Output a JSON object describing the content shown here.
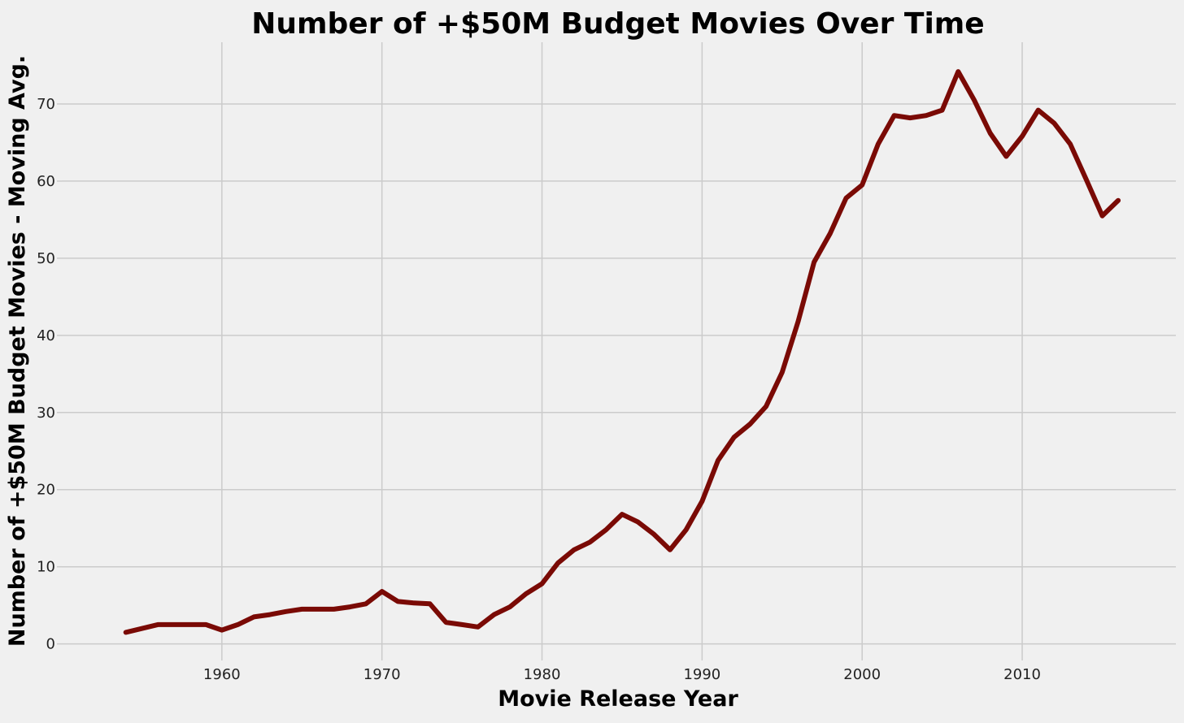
{
  "colors": {
    "background": "#f0f0f0",
    "grid": "#cbcbcb",
    "line": "#7a0a05"
  },
  "chart_data": {
    "type": "line",
    "title": "Number of +$50M Budget Movies Over Time",
    "xlabel": "Movie Release Year",
    "ylabel": "Number of +$50M Budget Movies - Moving Avg.",
    "xlim": [
      1950,
      2019.6
    ],
    "ylim": [
      -1.3,
      78
    ],
    "xticks": [
      1960,
      1970,
      1980,
      1990,
      2000,
      2010
    ],
    "yticks": [
      0,
      10,
      20,
      30,
      40,
      50,
      60,
      70
    ],
    "grid": true,
    "legend": "none",
    "series": [
      {
        "x": [
          1954,
          1955,
          1956,
          1957,
          1958,
          1959,
          1960,
          1961,
          1962,
          1963,
          1964,
          1965,
          1966,
          1967,
          1968,
          1969,
          1970,
          1971,
          1972,
          1973,
          1974,
          1975,
          1976,
          1977,
          1978,
          1979,
          1980,
          1981,
          1982,
          1983,
          1984,
          1985,
          1986,
          1987,
          1988,
          1989,
          1990,
          1991,
          1992,
          1993,
          1994,
          1995,
          1996,
          1997,
          1998,
          1999,
          2000,
          2001,
          2002,
          2003,
          2004,
          2005,
          2006,
          2007,
          2008,
          2009,
          2010,
          2011,
          2012,
          2013,
          2014,
          2015,
          2016
        ],
        "values": [
          1.5,
          2.0,
          2.5,
          2.5,
          2.5,
          2.5,
          1.8,
          2.5,
          3.5,
          3.8,
          4.2,
          4.5,
          4.5,
          4.5,
          4.8,
          5.2,
          6.8,
          5.5,
          5.3,
          5.2,
          2.8,
          2.5,
          2.2,
          3.8,
          4.8,
          6.5,
          7.8,
          10.5,
          12.2,
          13.2,
          14.8,
          16.8,
          15.8,
          14.2,
          12.2,
          14.8,
          18.5,
          23.8,
          26.8,
          28.5,
          30.8,
          35.2,
          41.8,
          49.5,
          53.2,
          57.8,
          59.5,
          64.8,
          68.5,
          68.2,
          68.5,
          69.2,
          74.2,
          70.5,
          66.2,
          63.2,
          65.8,
          69.2,
          67.5,
          64.8,
          60.2,
          55.5,
          57.5
        ]
      }
    ]
  }
}
